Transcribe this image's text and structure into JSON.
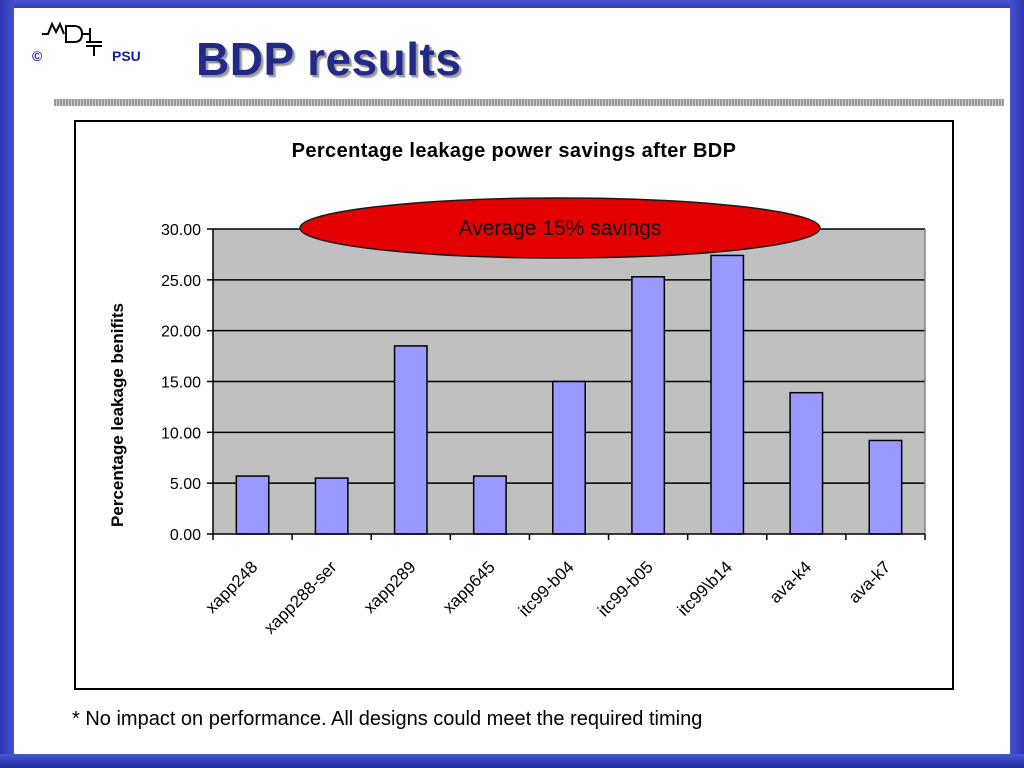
{
  "logo": {
    "copyright": "©",
    "org": "PSU"
  },
  "slide_title": "BDP results",
  "footnote": "* No impact on performance. All designs could meet the required timing",
  "colors": {
    "bar_fill": "#9999ff",
    "plot_bg": "#c0c0c0",
    "callout": "#e40000"
  },
  "chart_data": {
    "type": "bar",
    "title": "Percentage leakage power savings after BDP",
    "xlabel": "",
    "ylabel": "Percentage leakage benifits",
    "categories": [
      "xapp248",
      "xapp288-ser",
      "xapp289",
      "xapp645",
      "itc99-b04",
      "itc99-b05",
      "itc99\\b14",
      "ava-k4",
      "ava-k7"
    ],
    "values": [
      5.7,
      5.5,
      18.5,
      5.7,
      15.0,
      25.3,
      27.4,
      13.9,
      9.2
    ],
    "ylim": [
      0,
      30
    ],
    "yticks": [
      "0.00",
      "5.00",
      "10.00",
      "15.00",
      "20.00",
      "25.00",
      "30.00"
    ],
    "grid": true,
    "annotation": "Average 15% savings"
  }
}
